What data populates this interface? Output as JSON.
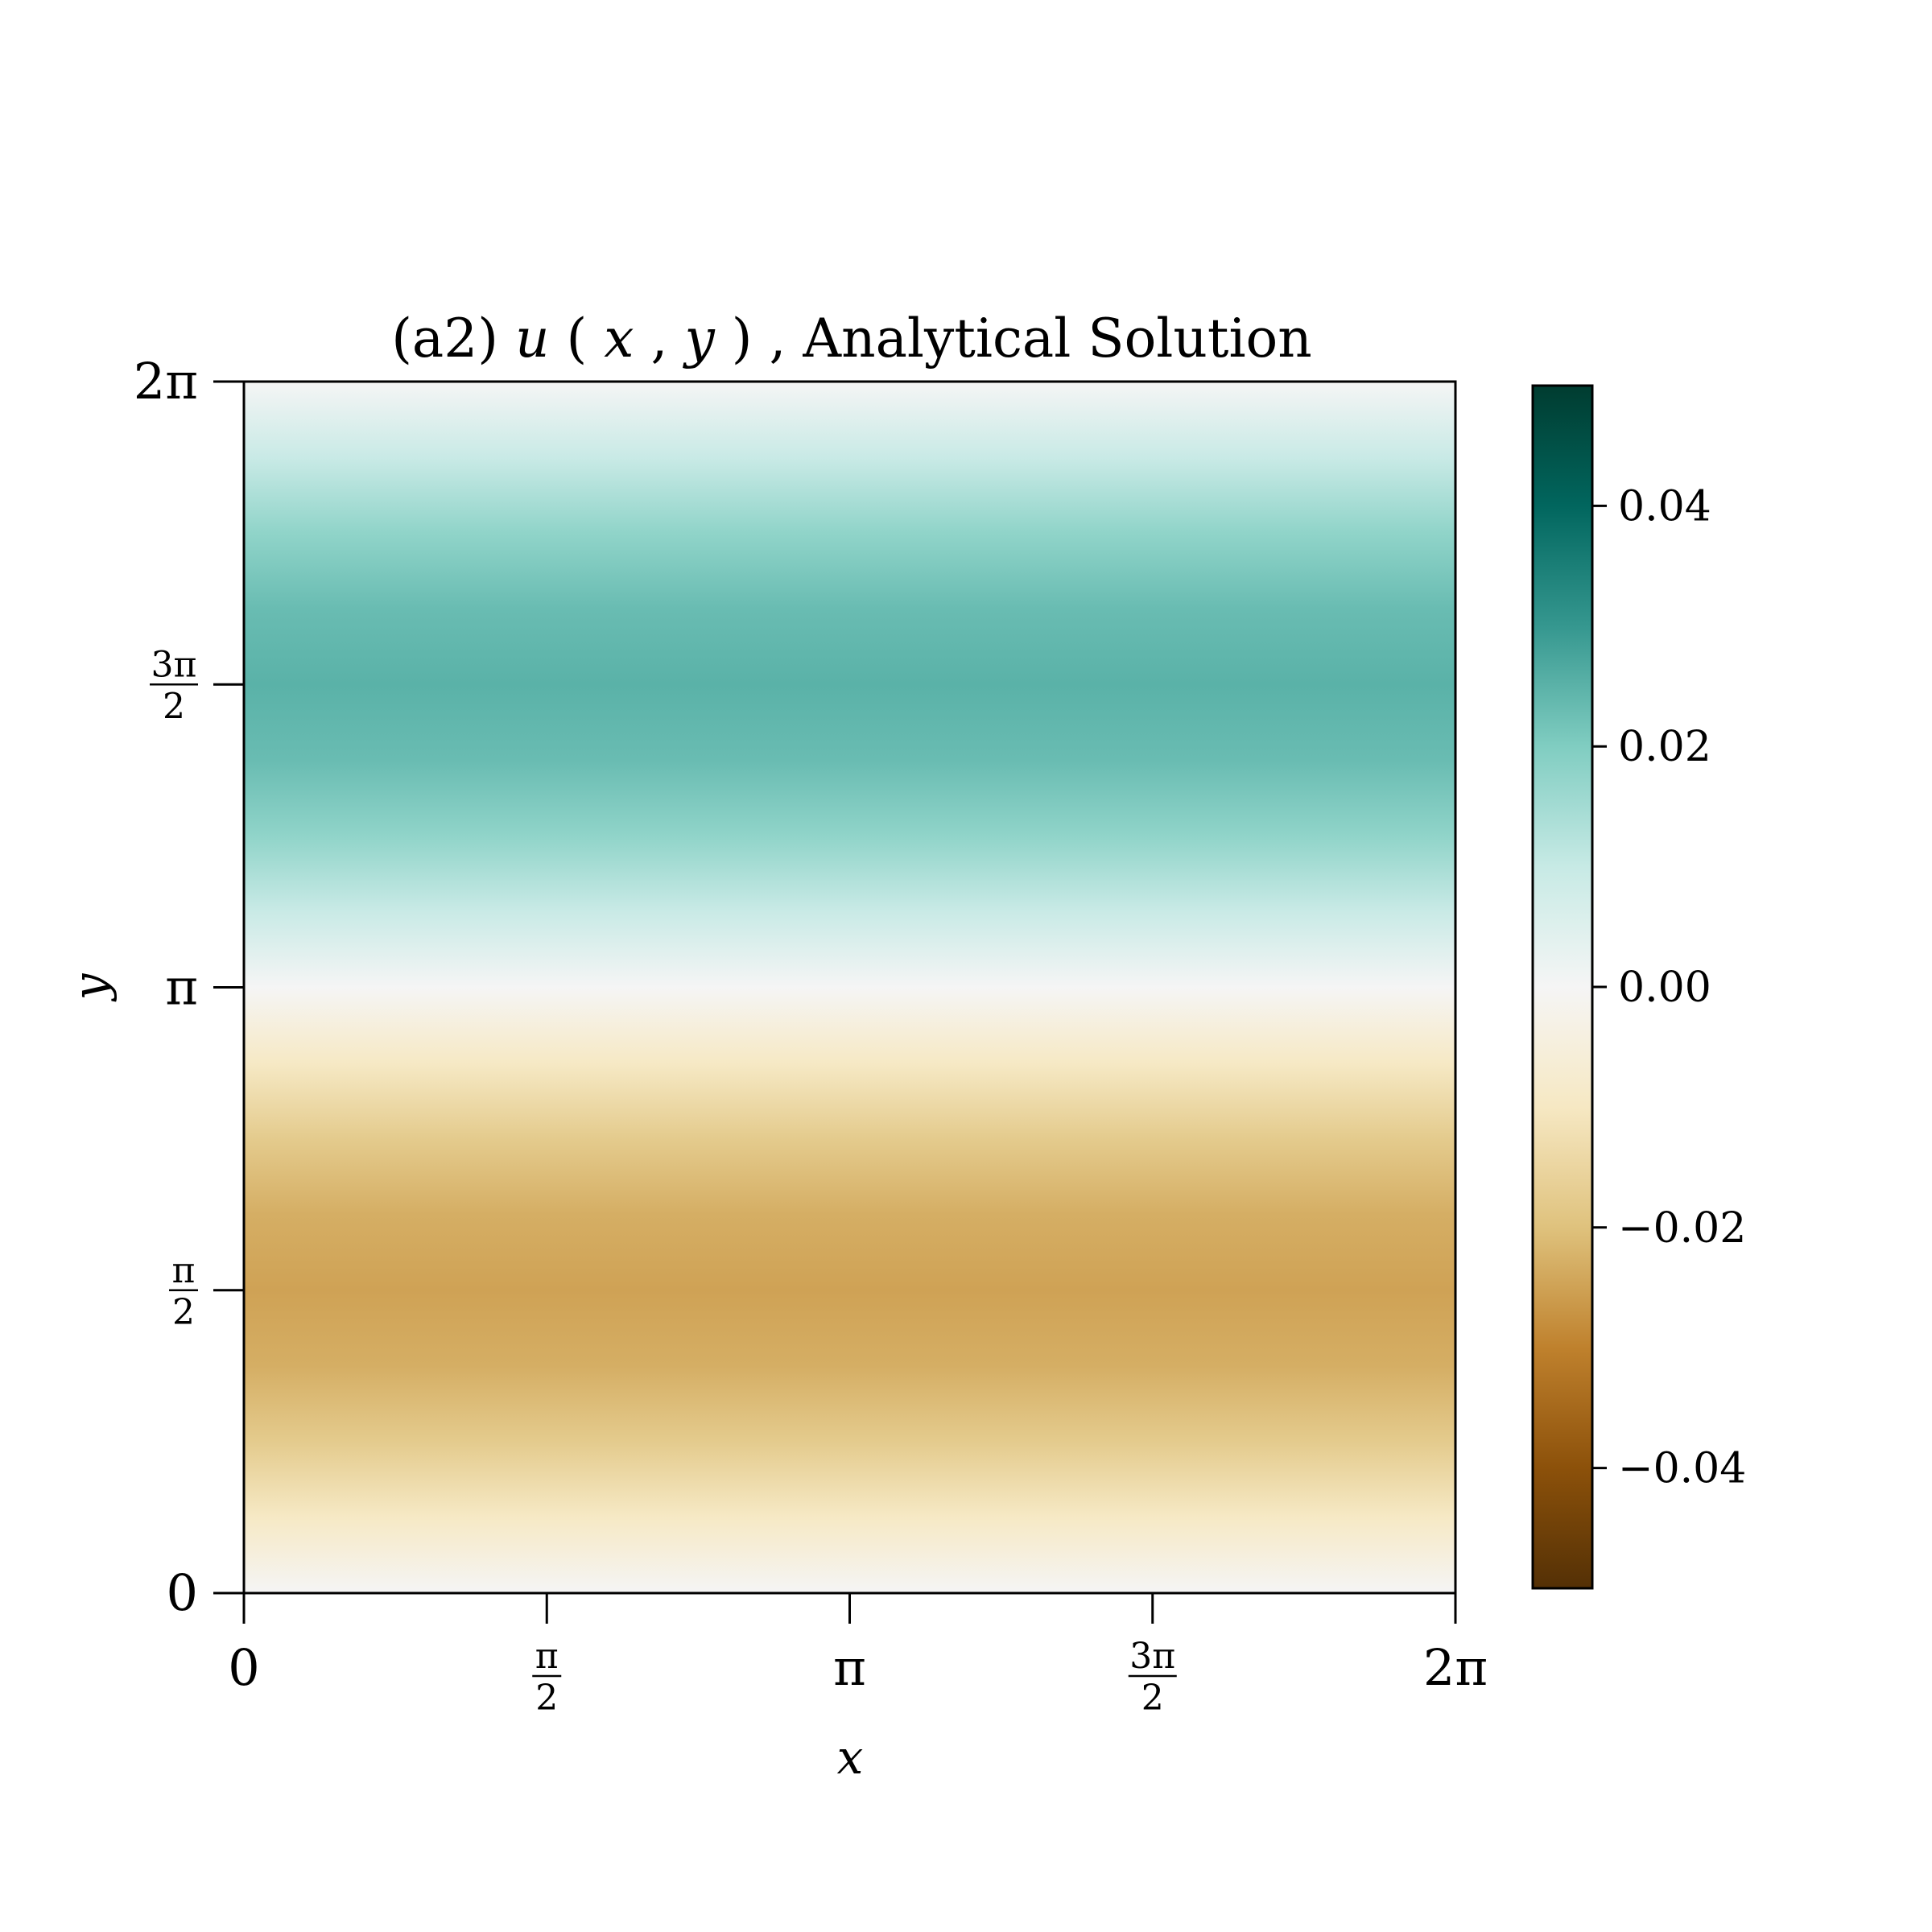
{
  "chart_data": {
    "type": "heatmap",
    "title": {
      "prefix": "(a2)",
      "func": "u",
      "open": "(",
      "var1": "x",
      "sep": ",",
      "var2": "y",
      "close": ")",
      "suffix": ", Analytical Solution"
    },
    "xlabel": "x",
    "ylabel": "y",
    "xlim": [
      0,
      6.2832
    ],
    "ylim": [
      0,
      6.2832
    ],
    "x_ticks": [
      {
        "value": 0,
        "kind": "plain",
        "text": "0"
      },
      {
        "value": 1.5708,
        "kind": "frac",
        "num": "π",
        "den": "2"
      },
      {
        "value": 3.1416,
        "kind": "plain",
        "text": "π"
      },
      {
        "value": 4.7124,
        "kind": "frac",
        "num": "3π",
        "den": "2"
      },
      {
        "value": 6.2832,
        "kind": "plain",
        "text": "2π"
      }
    ],
    "y_ticks": [
      {
        "value": 0,
        "kind": "plain",
        "text": "0"
      },
      {
        "value": 1.5708,
        "kind": "frac",
        "num": "π",
        "den": "2"
      },
      {
        "value": 3.1416,
        "kind": "plain",
        "text": "π"
      },
      {
        "value": 4.7124,
        "kind": "frac",
        "num": "3π",
        "den": "2"
      },
      {
        "value": 6.2832,
        "kind": "plain",
        "text": "2π"
      }
    ],
    "colorbar": {
      "range": [
        -0.05,
        0.05
      ],
      "colormap": "BrBG",
      "ticks": [
        {
          "value": 0.04,
          "text": "0.04"
        },
        {
          "value": 0.02,
          "text": "0.02"
        },
        {
          "value": 0.0,
          "text": "0.00"
        },
        {
          "value": -0.02,
          "text": "−0.02"
        },
        {
          "value": -0.04,
          "text": "−0.04"
        }
      ]
    },
    "field": {
      "description_of_values": "u varies with y only; approx -0.025*sin(y)",
      "y_samples": [
        0,
        0.3927,
        0.7854,
        1.1781,
        1.5708,
        1.9635,
        2.3562,
        2.7489,
        3.1416,
        3.5343,
        3.927,
        4.3197,
        4.7124,
        5.1051,
        5.4978,
        5.8905,
        6.2832
      ],
      "u_values": [
        0.0,
        -0.0096,
        -0.0177,
        -0.0231,
        -0.025,
        -0.0231,
        -0.0177,
        -0.0096,
        0.0,
        0.0096,
        0.0177,
        0.0231,
        0.025,
        0.0231,
        0.0177,
        0.0096,
        0.0
      ]
    },
    "grid": false
  }
}
